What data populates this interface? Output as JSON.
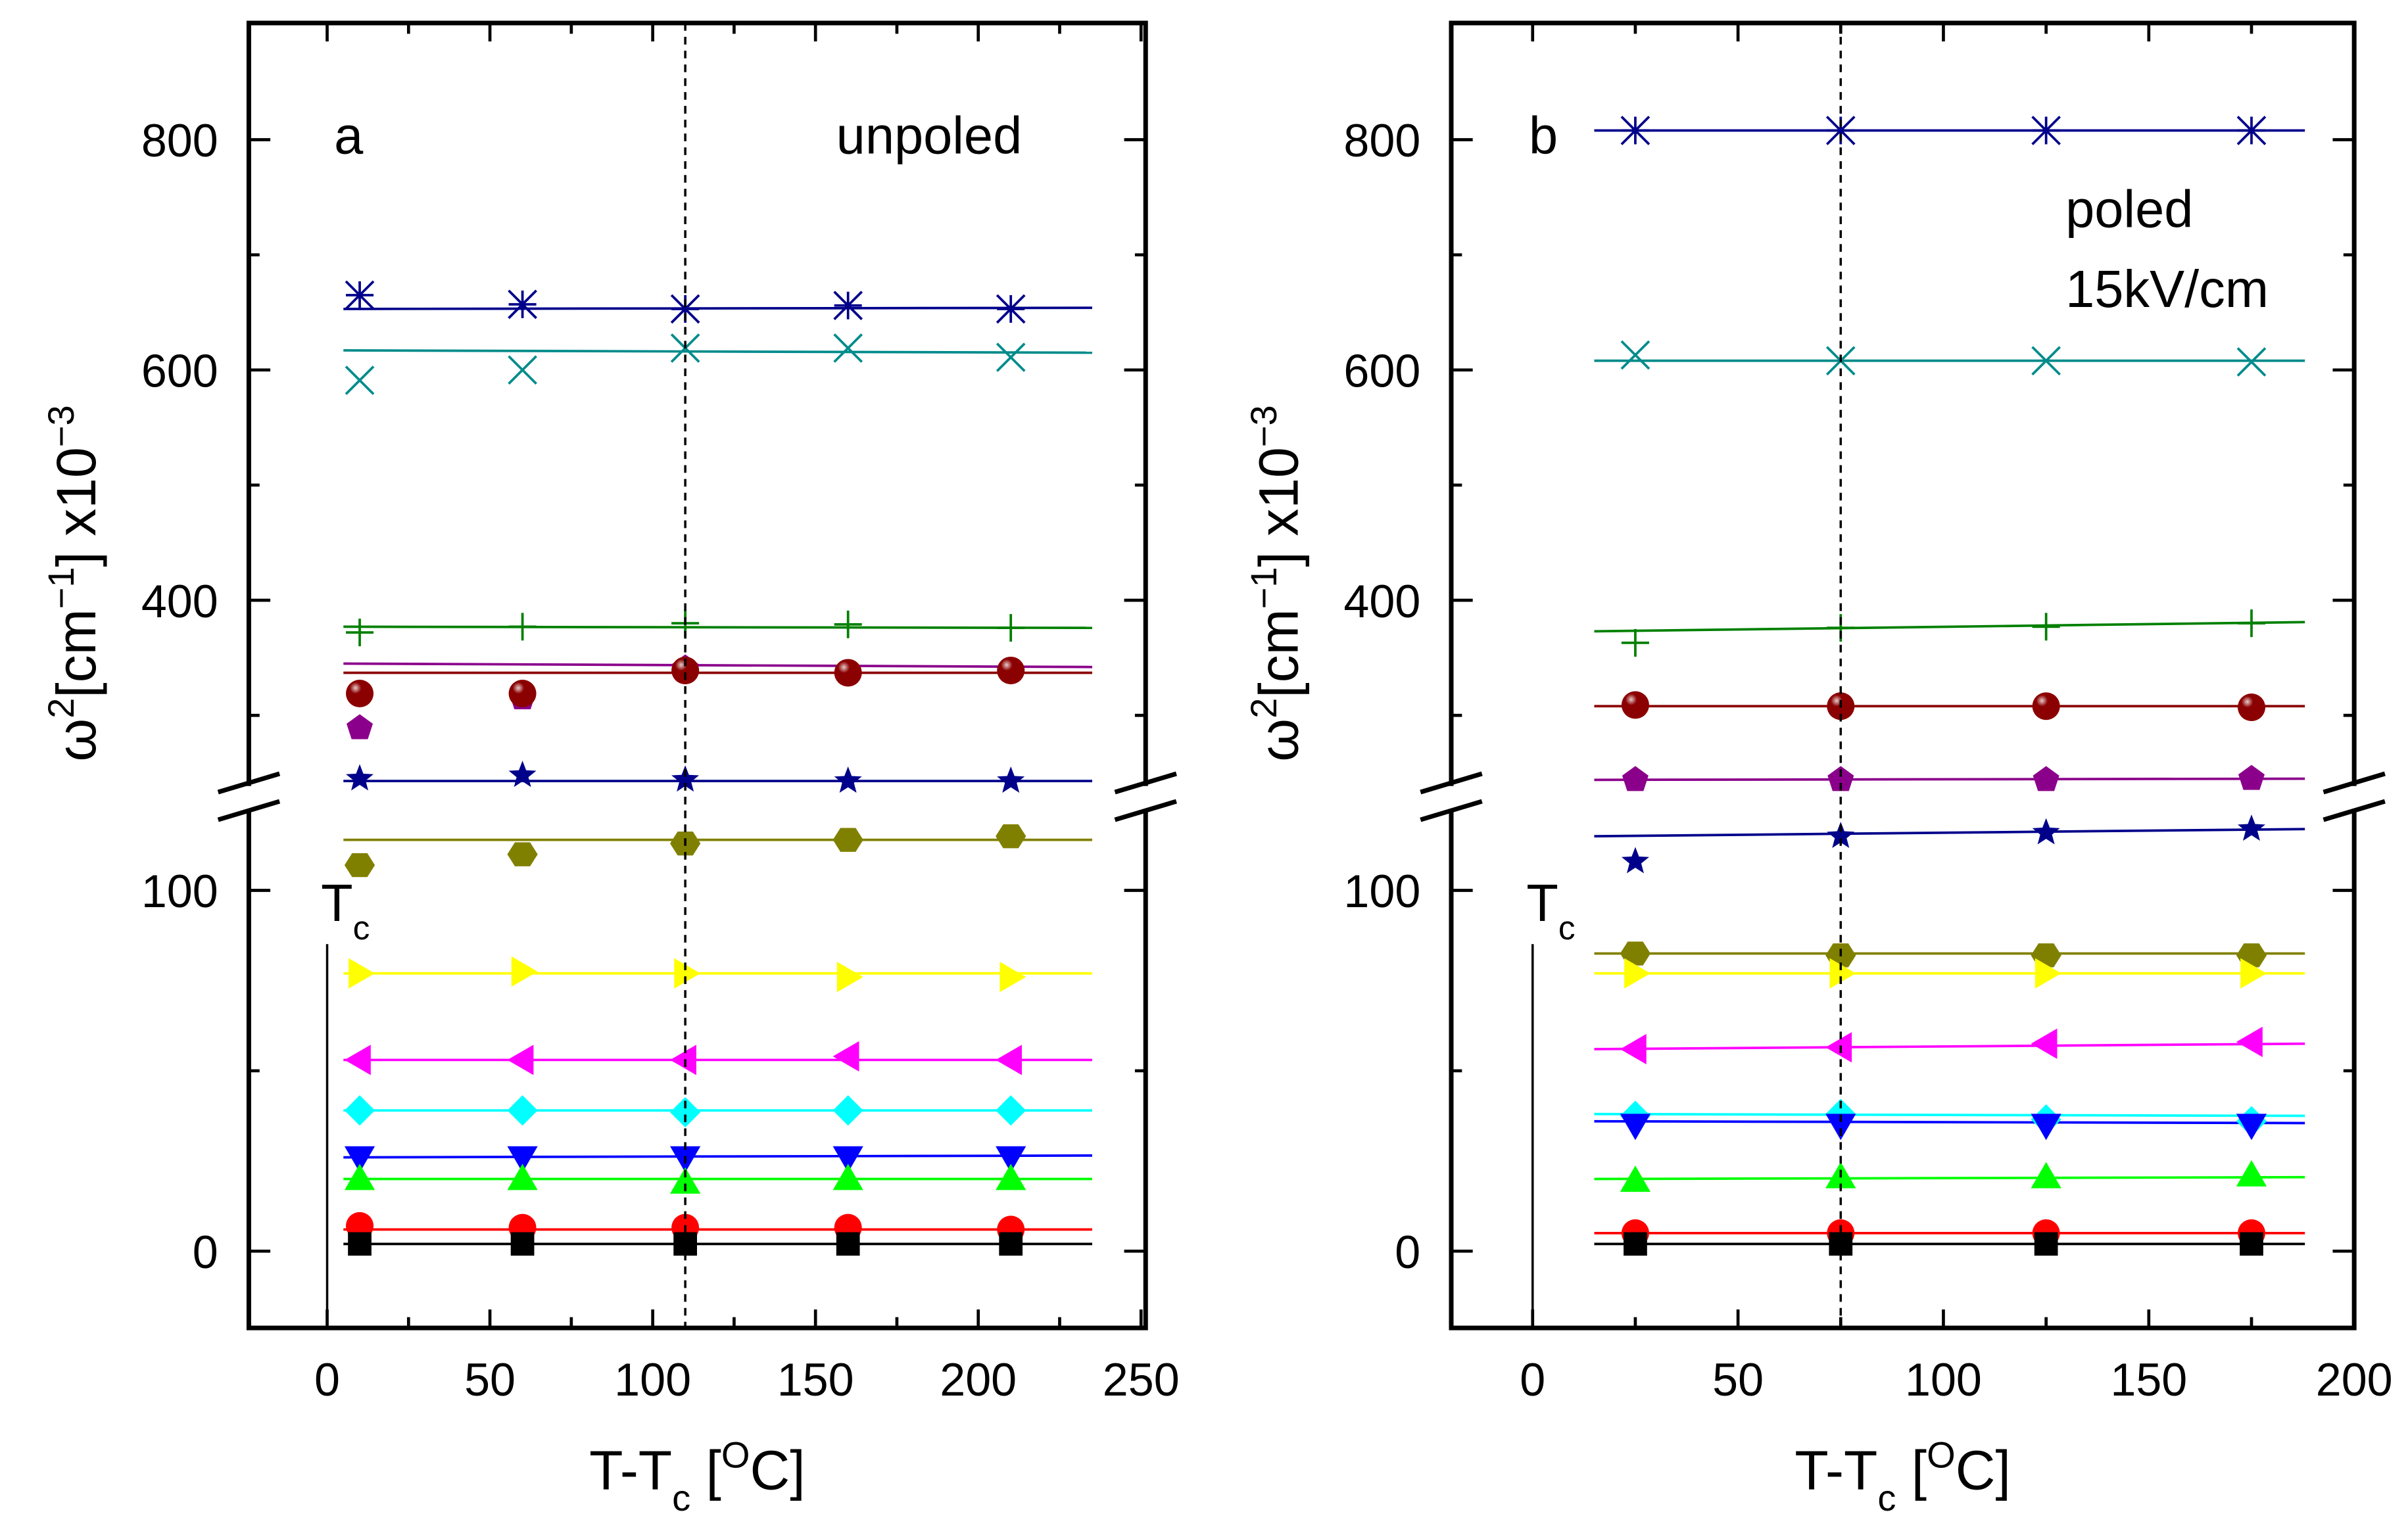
{
  "chart_data": [
    {
      "type": "scatter",
      "panel_label": "a",
      "annotation": [
        "unpoled"
      ],
      "xlabel": {
        "main": "T-T",
        "sub": "c",
        "mid": " [",
        "sup": "O",
        "end": "C]"
      },
      "ylabel": {
        "main": "ω",
        "sup1": "2",
        "mid": "[cm",
        "sup2": "−1",
        "mid2": "] x10",
        "sup3": "−3"
      },
      "xlim": [
        -25,
        250
      ],
      "xticks": [
        0,
        50,
        100,
        150,
        200,
        250
      ],
      "ylim_lower": [
        -20,
        123
      ],
      "ylim_upper": [
        235,
        900
      ],
      "yticks": [
        0,
        100,
        400,
        600,
        800
      ],
      "axis_break": true,
      "tc_label": {
        "main": "T",
        "sub": "c"
      },
      "dashed_line_x": 110,
      "fit_x_range": [
        5,
        235
      ],
      "x": [
        10,
        60,
        110,
        160,
        210
      ],
      "series": [
        {
          "marker": "asterisk",
          "color": "#00008b",
          "values": [
            665,
            657,
            653,
            656,
            653
          ],
          "fit": [
            653,
            654
          ]
        },
        {
          "marker": "x",
          "color": "#008b8b",
          "values": [
            591,
            600,
            619,
            619,
            611
          ],
          "fit": [
            617,
            615
          ]
        },
        {
          "marker": "plus",
          "color": "#008000",
          "values": [
            372,
            377,
            380,
            379,
            376
          ],
          "fit": [
            377,
            376
          ]
        },
        {
          "marker": "pentagon",
          "color": "#8b008b",
          "values": [
            289,
            315,
            341,
            337,
            339
          ],
          "fit": [
            345,
            342
          ]
        },
        {
          "marker": "sphere",
          "color": "#8b0000",
          "values": [
            319,
            319,
            339,
            337,
            339
          ],
          "fit": [
            337,
            337
          ]
        },
        {
          "marker": "star",
          "color": "#00008b",
          "values": [
            245,
            248,
            244,
            243,
            243
          ],
          "fit": [
            243,
            243
          ]
        },
        {
          "marker": "hexagon",
          "color": "#808000",
          "values": [
            107,
            110,
            113,
            114,
            115
          ],
          "fit": [
            114,
            114
          ]
        },
        {
          "marker": "triangle-right",
          "color": "#ffff00",
          "values": [
            77,
            77.5,
            77,
            76,
            76
          ],
          "fit": [
            77,
            77
          ]
        },
        {
          "marker": "triangle-left",
          "color": "#ff00ff",
          "values": [
            53,
            53,
            53,
            54,
            53
          ],
          "fit": [
            53,
            53
          ]
        },
        {
          "marker": "diamond",
          "color": "#00ffff",
          "values": [
            39,
            39,
            38.5,
            39,
            39
          ],
          "fit": [
            39,
            39
          ]
        },
        {
          "marker": "triangle-down",
          "color": "#0000ff",
          "values": [
            26,
            26,
            26,
            26,
            26
          ],
          "fit": [
            26,
            26.5
          ]
        },
        {
          "marker": "triangle-up",
          "color": "#00ff00",
          "values": [
            20,
            20,
            19,
            20,
            20
          ],
          "fit": [
            20,
            20
          ]
        },
        {
          "marker": "circle",
          "color": "#ff0000",
          "values": [
            7,
            6.5,
            6.5,
            6.5,
            6
          ],
          "fit": [
            6,
            6
          ]
        },
        {
          "marker": "square",
          "color": "#000000",
          "values": [
            2,
            2,
            2,
            2,
            2
          ],
          "fit": [
            2,
            2
          ]
        }
      ]
    },
    {
      "type": "scatter",
      "panel_label": "b",
      "annotation": [
        "poled",
        "15kV/cm"
      ],
      "xlabel": {
        "main": "T-T",
        "sub": "c",
        "mid": " [",
        "sup": "O",
        "end": "C]"
      },
      "ylabel": {
        "main": "ω",
        "sup1": "2",
        "mid": "[cm",
        "sup2": "−1",
        "mid2": "] x10",
        "sup3": "−3"
      },
      "xlim": [
        -20,
        200
      ],
      "xticks": [
        0,
        50,
        100,
        150,
        200
      ],
      "ylim_lower": [
        -20,
        123
      ],
      "ylim_upper": [
        235,
        900
      ],
      "yticks": [
        0,
        100,
        400,
        600,
        800
      ],
      "axis_break": true,
      "tc_label": {
        "main": "T",
        "sub": "c"
      },
      "dashed_line_x": 75,
      "fit_x_range": [
        15,
        188
      ],
      "x": [
        25,
        75,
        125,
        175
      ],
      "series": [
        {
          "marker": "asterisk",
          "color": "#00008b",
          "values": [
            808,
            808,
            808,
            808
          ],
          "fit": [
            808,
            808
          ]
        },
        {
          "marker": "x",
          "color": "#008b8b",
          "values": [
            613,
            608,
            608,
            607
          ],
          "fit": [
            608,
            608
          ]
        },
        {
          "marker": "plus",
          "color": "#008000",
          "values": [
            363,
            376,
            377,
            380
          ],
          "fit": [
            373,
            381
          ]
        },
        {
          "marker": "sphere",
          "color": "#8b0000",
          "values": [
            309,
            308,
            308,
            307
          ],
          "fit": [
            308,
            308
          ]
        },
        {
          "marker": "pentagon",
          "color": "#8b008b",
          "values": [
            244,
            244,
            244,
            245
          ],
          "fit": [
            244,
            245
          ]
        },
        {
          "marker": "star",
          "color": "#00008b",
          "values": [
            108,
            115,
            116,
            117
          ],
          "fit": [
            115,
            117
          ]
        },
        {
          "marker": "hexagon",
          "color": "#808000",
          "values": [
            82.5,
            82,
            82,
            82
          ],
          "fit": [
            82.5,
            82.5
          ]
        },
        {
          "marker": "triangle-right",
          "color": "#ffff00",
          "values": [
            77,
            77,
            77,
            77
          ],
          "fit": [
            77,
            77
          ]
        },
        {
          "marker": "triangle-left",
          "color": "#ff00ff",
          "values": [
            56,
            56.5,
            57.5,
            58
          ],
          "fit": [
            56,
            57.5
          ]
        },
        {
          "marker": "diamond",
          "color": "#00ffff",
          "values": [
            37.5,
            38,
            36.5,
            36
          ],
          "fit": [
            38,
            37.5
          ]
        },
        {
          "marker": "triangle-down",
          "color": "#0000ff",
          "values": [
            35,
            35,
            35,
            35
          ],
          "fit": [
            36,
            35.5
          ]
        },
        {
          "marker": "triangle-up",
          "color": "#00ff00",
          "values": [
            19.5,
            20.5,
            20.5,
            21
          ],
          "fit": [
            20,
            20.5
          ]
        },
        {
          "marker": "circle",
          "color": "#ff0000",
          "values": [
            5,
            5,
            5,
            5
          ],
          "fit": [
            5,
            5
          ]
        },
        {
          "marker": "square",
          "color": "#000000",
          "values": [
            2,
            2,
            2,
            2
          ],
          "fit": [
            2,
            2
          ]
        }
      ]
    }
  ]
}
